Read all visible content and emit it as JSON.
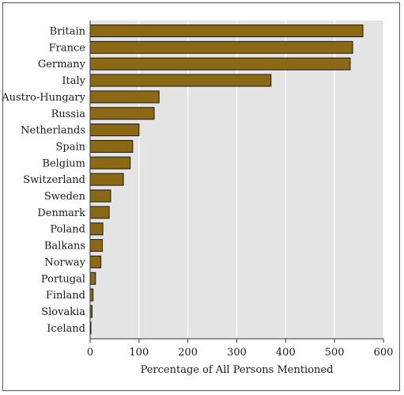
{
  "chart_data": {
    "type": "bar",
    "orientation": "horizontal",
    "categories": [
      "Britain",
      "France",
      "Germany",
      "Italy",
      "Austro-Hungary",
      "Russia",
      "Netherlands",
      "Spain",
      "Belgium",
      "Switzerland",
      "Sweden",
      "Denmark",
      "Poland",
      "Balkans",
      "Norway",
      "Portugal",
      "Finland",
      "Slovakia",
      "Iceland"
    ],
    "values": [
      558,
      537,
      532,
      370,
      141,
      131,
      100,
      87,
      82,
      68,
      42,
      39,
      26,
      25,
      22,
      11,
      6,
      4,
      1
    ],
    "xlabel": "Percentage of All Persons Mentioned",
    "ylabel": "",
    "title": "",
    "xlim": [
      0,
      600
    ],
    "xticks": [
      0,
      100,
      200,
      300,
      400,
      500,
      600
    ],
    "grid": "vertical",
    "legend": "none"
  },
  "colors": {
    "bar_fill": "#8b6914",
    "bar_stroke": "#1a1a1a",
    "plot_background": "#e4e4e4",
    "gridline": "#ffffff",
    "axis": "#333333"
  }
}
